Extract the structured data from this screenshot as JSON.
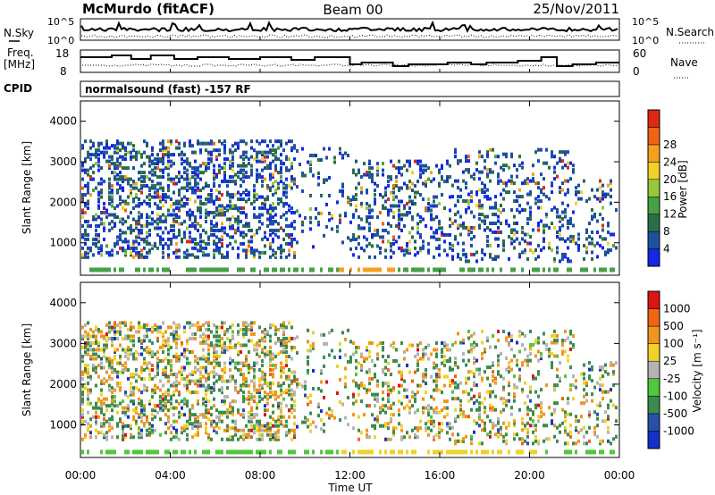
{
  "header": {
    "station": "McMurdo (fitACF)",
    "beam": "Beam 00",
    "date": "25/Nov/2011"
  },
  "noise_panel": {
    "left_label": "N.Sky",
    "right_label": "N.Search",
    "left_ticks": [
      "10^5",
      "10^0"
    ],
    "right_ticks": [
      "10^5",
      "10^0"
    ]
  },
  "freq_panel": {
    "left_label_line1": "Freq.",
    "left_label_line2": "[MHz]",
    "right_label": "Nave",
    "left_ticks": [
      "18",
      "8"
    ],
    "right_ticks": [
      "60",
      "0"
    ]
  },
  "cpid_panel": {
    "label": "CPID",
    "text": "normalsound (fast) -157 RF"
  },
  "colors": {
    "power_scale": [
      "#1428e6",
      "#1e50a0",
      "#2a6e46",
      "#46a046",
      "#96c83c",
      "#f0d228",
      "#f5a01e",
      "#f06414",
      "#dc2814"
    ],
    "velocity_scale": [
      "#1432c8",
      "#2850aa",
      "#3c8c50",
      "#50c83c",
      "#b4b4b4",
      "#f0d228",
      "#f0961e",
      "#f06414",
      "#dc1414"
    ]
  },
  "chart_data": [
    {
      "type": "heatmap",
      "panel": "power",
      "ylabel": "Slant Range [km]",
      "yticks": [
        "1000",
        "2000",
        "3000",
        "4000"
      ],
      "ylim": [
        200,
        4500
      ],
      "xlim_hours": [
        0,
        24
      ],
      "colorbar_label": "Power [dB]",
      "colorbar_ticks": [
        "4",
        "8",
        "12",
        "16",
        "20",
        "24",
        "28"
      ],
      "colorbar_range": [
        0,
        30
      ]
    },
    {
      "type": "heatmap",
      "panel": "velocity",
      "ylabel": "Slant Range [km]",
      "yticks": [
        "1000",
        "2000",
        "3000",
        "4000"
      ],
      "ylim": [
        200,
        4500
      ],
      "xlim_hours": [
        0,
        24
      ],
      "colorbar_label": "Velocity [m s⁻¹]",
      "colorbar_ticks": [
        "1000",
        "500",
        "100",
        "25",
        "-25",
        "-100",
        "-500",
        "-1000"
      ]
    }
  ],
  "time_axis": {
    "ticks": [
      "00:00",
      "04:00",
      "08:00",
      "12:00",
      "16:00",
      "20:00",
      "00:00"
    ],
    "label": "Time UT"
  }
}
